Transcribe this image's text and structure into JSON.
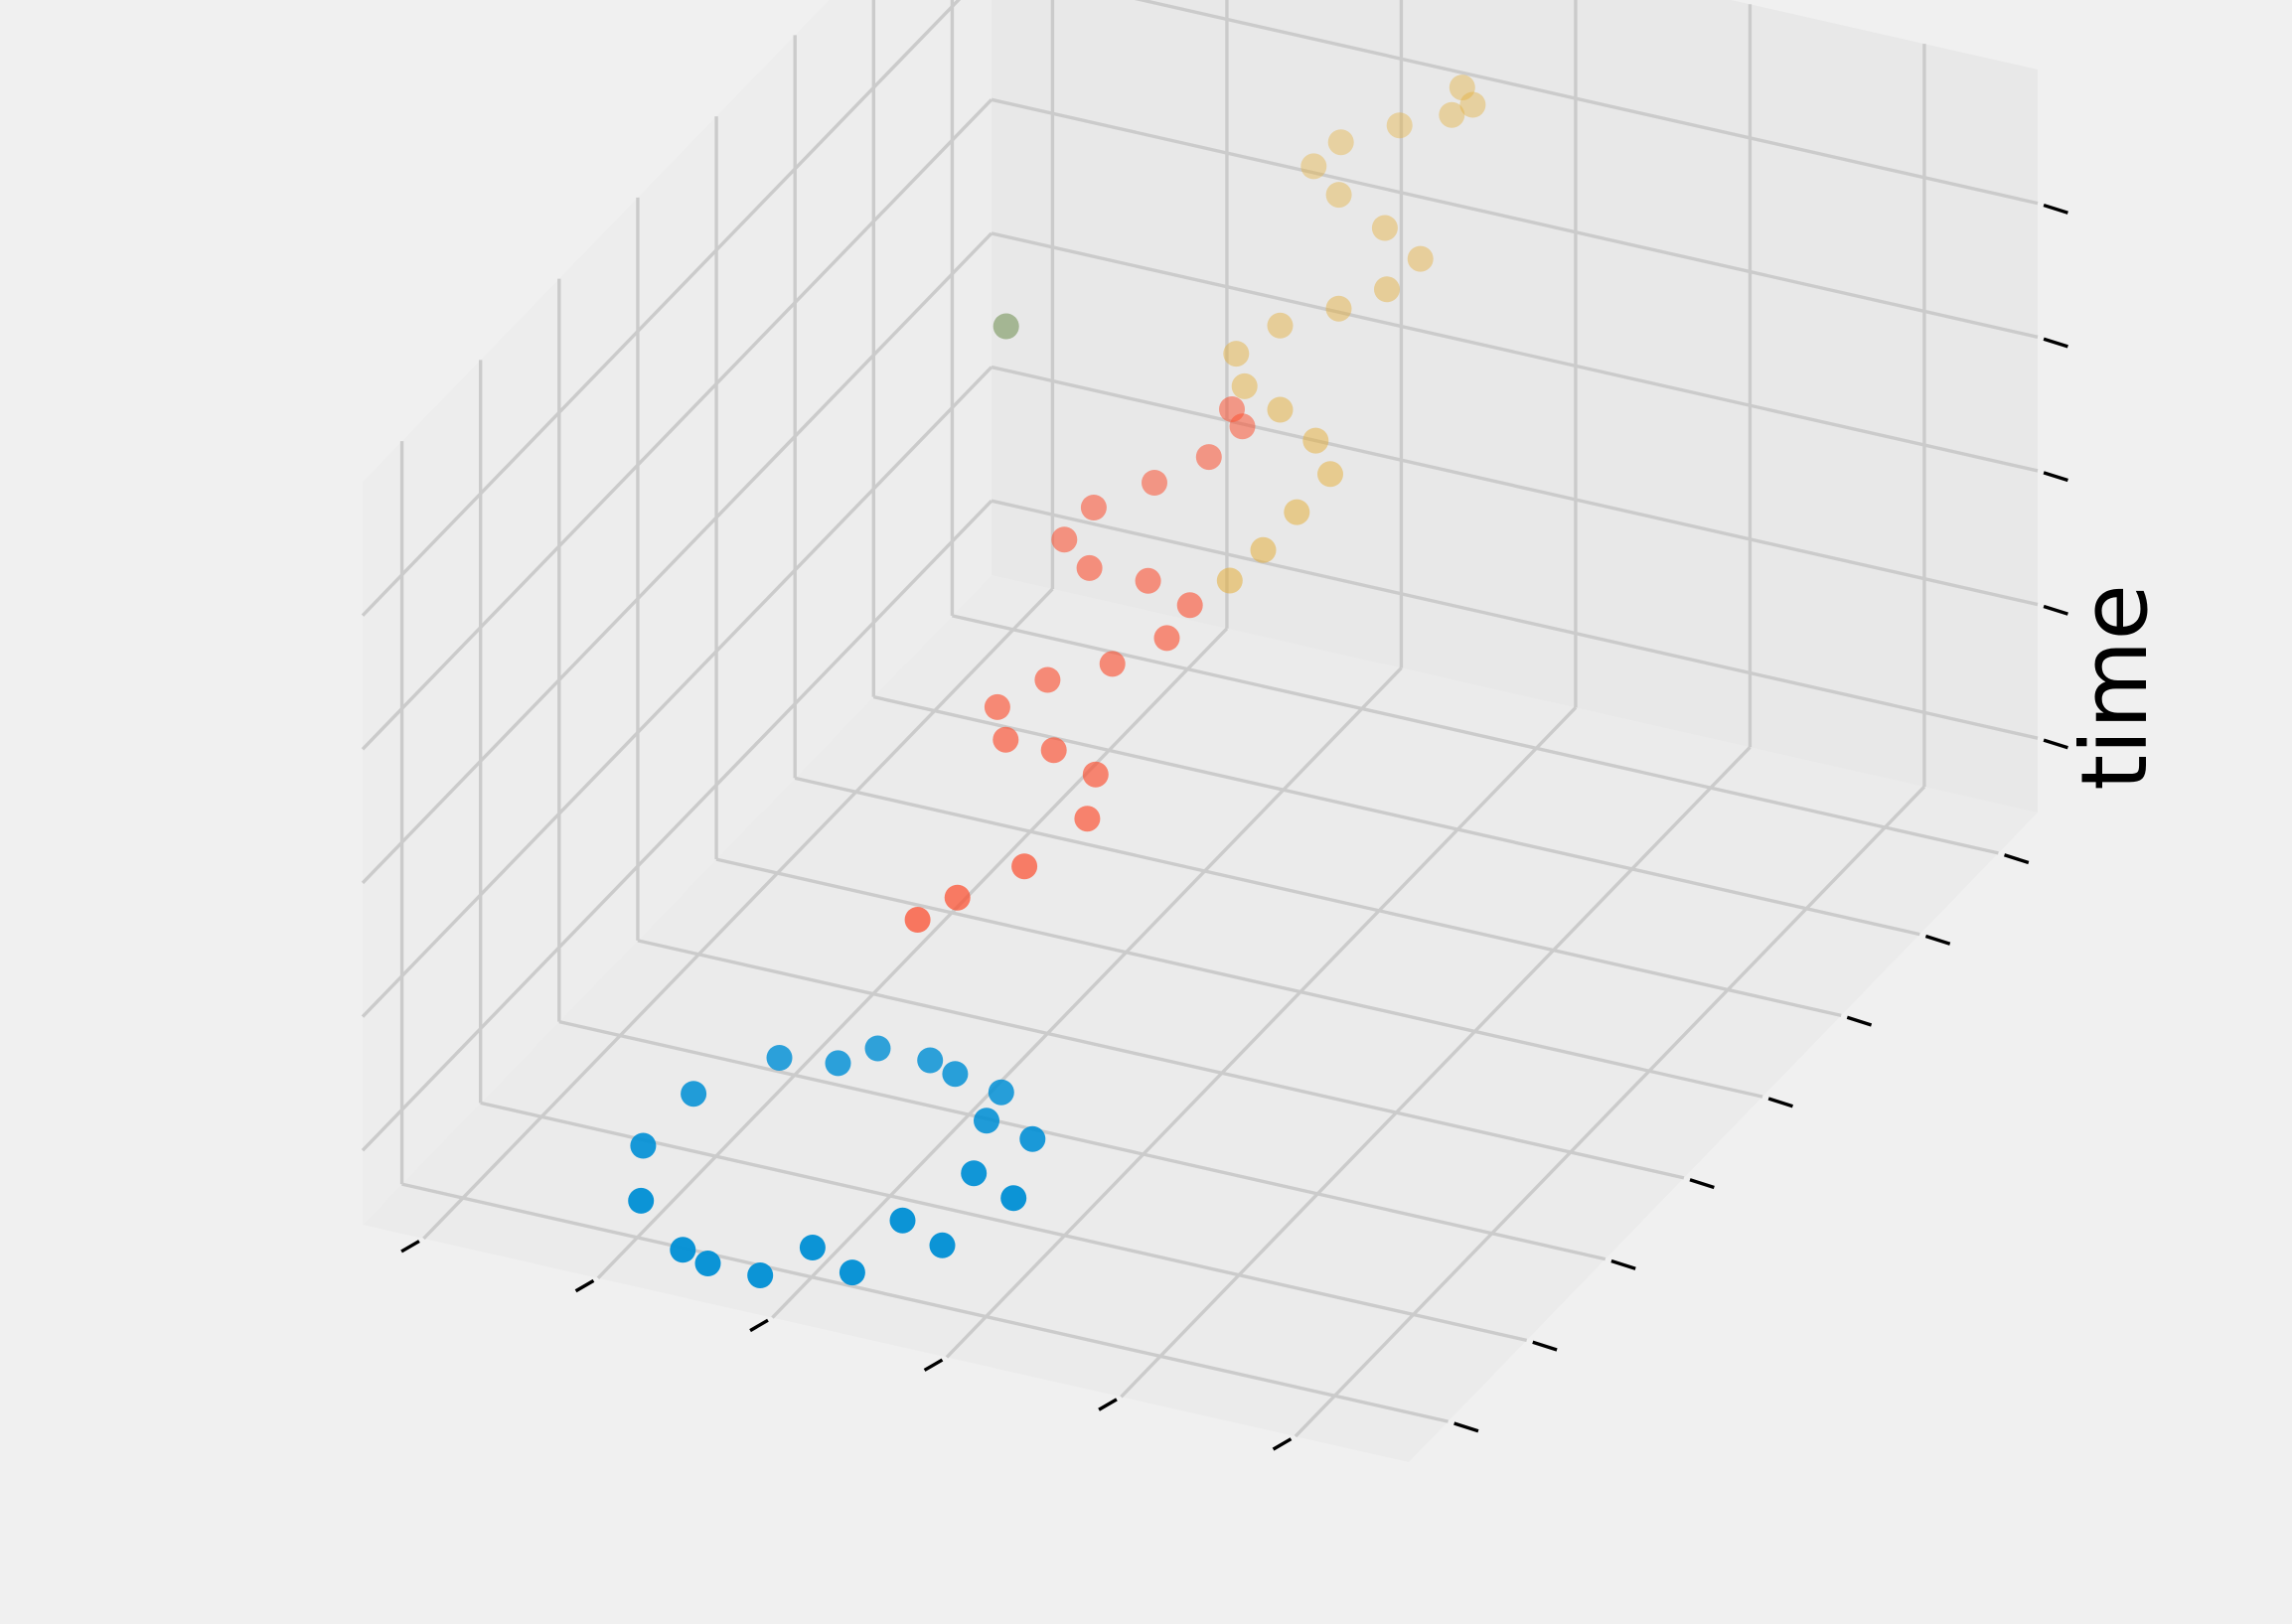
{
  "chart_data": {
    "type": "scatter",
    "projection": "3d",
    "title": "",
    "xlabel": "",
    "ylabel": "",
    "zlabel": "time",
    "tick_labels_shown": false,
    "grid": true,
    "legend": "none",
    "colors": {
      "background": "#f0f0f0",
      "pane": "#ebebeb",
      "grid": "#cbcbcb",
      "blue": "#008fd5",
      "red": "#fc4f30",
      "yellow": "#e5ae38",
      "green": "#6d904f"
    },
    "series": [
      {
        "color": "#008fd5",
        "points": [
          [
            0.3,
            0.05,
            0.0
          ],
          [
            0.37,
            0.1,
            0.0
          ],
          [
            0.42,
            0.16,
            0.0
          ],
          [
            0.44,
            0.24,
            0.0
          ],
          [
            0.41,
            0.31,
            0.0
          ],
          [
            0.35,
            0.36,
            0.0
          ],
          [
            0.27,
            0.37,
            0.0
          ],
          [
            0.2,
            0.33,
            0.0
          ],
          [
            0.16,
            0.26,
            0.0
          ],
          [
            0.16,
            0.18,
            0.0
          ],
          [
            0.2,
            0.11,
            0.0
          ],
          [
            0.27,
            0.06,
            0.0
          ],
          [
            0.35,
            0.05,
            0.0
          ],
          [
            0.42,
            0.08,
            0.0
          ],
          [
            0.47,
            0.14,
            0.0
          ],
          [
            0.49,
            0.22,
            0.0
          ],
          [
            0.46,
            0.3,
            0.0
          ],
          [
            0.4,
            0.35,
            0.0
          ],
          [
            0.32,
            0.37,
            0.0
          ],
          [
            0.25,
            0.34,
            0.0
          ]
        ]
      },
      {
        "color": "#fc4f30",
        "points": [
          [
            0.26,
            0.45,
            0.1
          ],
          [
            0.28,
            0.48,
            0.11
          ],
          [
            0.32,
            0.52,
            0.13
          ],
          [
            0.35,
            0.57,
            0.16
          ],
          [
            0.34,
            0.6,
            0.19
          ],
          [
            0.3,
            0.6,
            0.21
          ],
          [
            0.26,
            0.59,
            0.22
          ],
          [
            0.24,
            0.61,
            0.24
          ],
          [
            0.27,
            0.64,
            0.26
          ],
          [
            0.32,
            0.66,
            0.28
          ],
          [
            0.36,
            0.68,
            0.31
          ],
          [
            0.37,
            0.7,
            0.34
          ],
          [
            0.33,
            0.7,
            0.36
          ],
          [
            0.28,
            0.69,
            0.37
          ],
          [
            0.25,
            0.7,
            0.39
          ],
          [
            0.26,
            0.73,
            0.41
          ],
          [
            0.3,
            0.76,
            0.43
          ],
          [
            0.34,
            0.78,
            0.46
          ],
          [
            0.36,
            0.8,
            0.49
          ],
          [
            0.35,
            0.8,
            0.51
          ]
        ]
      },
      {
        "color": "#e5ae38",
        "points": [
          [
            0.36,
            0.78,
            0.3
          ],
          [
            0.38,
            0.8,
            0.33
          ],
          [
            0.4,
            0.82,
            0.37
          ],
          [
            0.42,
            0.84,
            0.41
          ],
          [
            0.4,
            0.85,
            0.44
          ],
          [
            0.36,
            0.86,
            0.46
          ],
          [
            0.32,
            0.87,
            0.47
          ],
          [
            0.3,
            0.89,
            0.49
          ],
          [
            0.33,
            0.91,
            0.52
          ],
          [
            0.38,
            0.92,
            0.55
          ],
          [
            0.42,
            0.93,
            0.58
          ],
          [
            0.44,
            0.95,
            0.61
          ],
          [
            0.4,
            0.96,
            0.63
          ],
          [
            0.35,
            0.97,
            0.65
          ],
          [
            0.32,
            0.98,
            0.67
          ],
          [
            0.34,
            0.99,
            0.7
          ],
          [
            0.39,
            1.0,
            0.73
          ],
          [
            0.44,
            1.0,
            0.76
          ],
          [
            0.46,
            1.0,
            0.78
          ],
          [
            0.45,
            1.0,
            0.8
          ]
        ]
      },
      {
        "color": "#6d904f",
        "points": [
          [
            0.02,
            0.99,
            0.35
          ],
          [
            0.02,
            0.99,
            0.35
          ]
        ]
      }
    ]
  }
}
